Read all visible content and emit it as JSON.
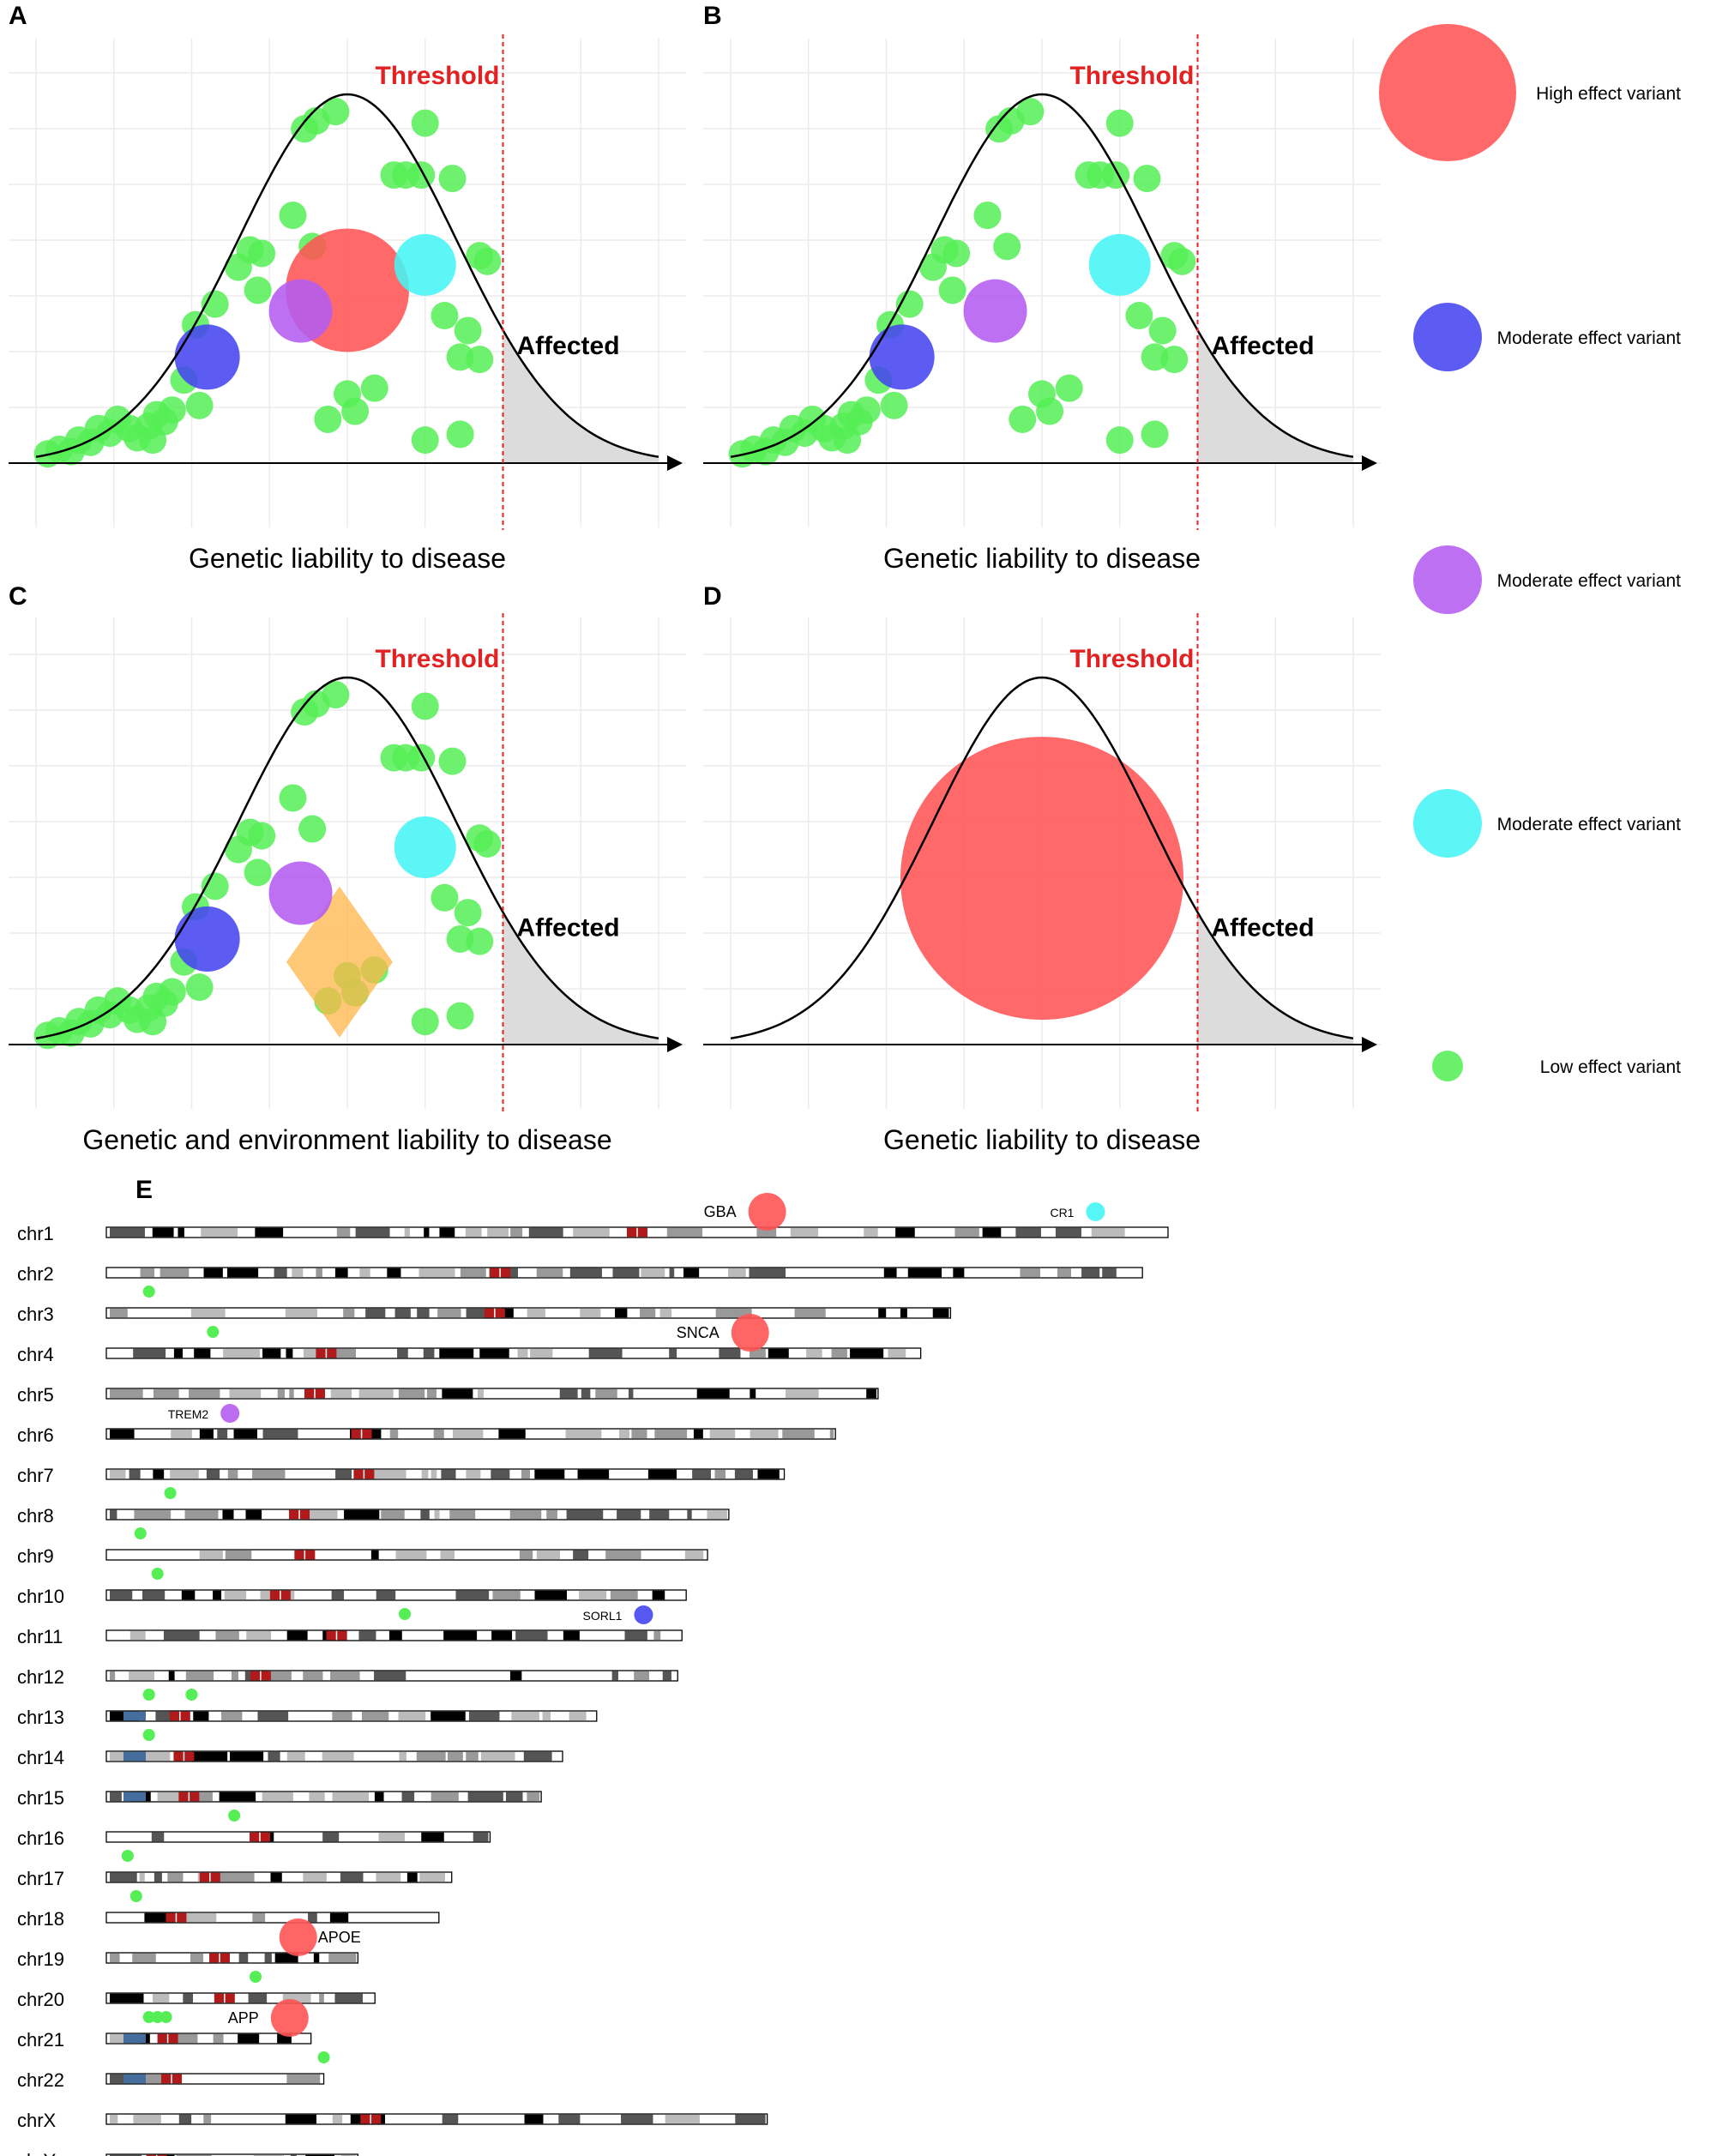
{
  "panels": [
    {
      "letter": "A",
      "threshold_label": "Threshold",
      "affected_label": "Affected",
      "xlabel": "Genetic liability to disease",
      "extra_variants": [
        {
          "type": "red",
          "x": 4.0,
          "y": 1.5
        },
        {
          "type": "cyan",
          "x": 5.0,
          "y": 1.72
        },
        {
          "type": "purple",
          "x": 3.4,
          "y": 1.32
        },
        {
          "type": "blue",
          "x": 2.2,
          "y": 0.92
        }
      ],
      "environment": null
    },
    {
      "letter": "B",
      "threshold_label": "Threshold",
      "affected_label": "Affected",
      "xlabel": "Genetic liability to disease",
      "extra_variants": [
        {
          "type": "cyan",
          "x": 5.0,
          "y": 1.72
        },
        {
          "type": "purple",
          "x": 3.4,
          "y": 1.32
        },
        {
          "type": "blue",
          "x": 2.2,
          "y": 0.92
        }
      ],
      "environment": null
    },
    {
      "letter": "C",
      "threshold_label": "Threshold",
      "affected_label": "Affected",
      "xlabel": "Genetic and environment liability to disease",
      "extra_variants": [
        {
          "type": "cyan",
          "x": 5.0,
          "y": 1.72
        },
        {
          "type": "purple",
          "x": 3.4,
          "y": 1.32
        },
        {
          "type": "blue",
          "x": 2.2,
          "y": 0.92
        }
      ],
      "environment": {
        "x": 3.9,
        "y": 0.72
      }
    },
    {
      "letter": "D",
      "threshold_label": "Threshold",
      "affected_label": "Affected",
      "xlabel": "Genetic liability to disease",
      "extra_variants": [
        {
          "type": "redbig",
          "x": 4.0,
          "y": 1.45
        }
      ],
      "environment": null,
      "hide_green": true
    }
  ],
  "curve": {
    "xmin": 0,
    "xmax": 8,
    "ymax": 3.2,
    "mean": 4.0,
    "sd": 1.4,
    "peak": 3.2,
    "threshold_x": 6.0
  },
  "green_points": [
    [
      0.15,
      0.08
    ],
    [
      0.3,
      0.12
    ],
    [
      0.45,
      0.1
    ],
    [
      0.55,
      0.2
    ],
    [
      0.7,
      0.18
    ],
    [
      0.8,
      0.3
    ],
    [
      0.95,
      0.26
    ],
    [
      1.05,
      0.38
    ],
    [
      1.2,
      0.3
    ],
    [
      1.3,
      0.22
    ],
    [
      1.45,
      0.32
    ],
    [
      1.55,
      0.42
    ],
    [
      1.65,
      0.36
    ],
    [
      1.75,
      0.46
    ],
    [
      1.5,
      0.2
    ],
    [
      1.9,
      0.72
    ],
    [
      2.1,
      0.5
    ],
    [
      2.05,
      1.2
    ],
    [
      2.3,
      1.38
    ],
    [
      2.6,
      1.7
    ],
    [
      2.85,
      1.5
    ],
    [
      2.75,
      1.85
    ],
    [
      2.9,
      1.82
    ],
    [
      3.3,
      2.15
    ],
    [
      3.45,
      2.9
    ],
    [
      3.6,
      2.97
    ],
    [
      3.85,
      3.05
    ],
    [
      3.75,
      0.38
    ],
    [
      4.0,
      0.6
    ],
    [
      4.1,
      0.45
    ],
    [
      4.35,
      0.65
    ],
    [
      4.6,
      2.5
    ],
    [
      4.75,
      2.5
    ],
    [
      4.95,
      2.5
    ],
    [
      5.0,
      2.95
    ],
    [
      5.35,
      2.47
    ],
    [
      5.25,
      1.28
    ],
    [
      5.45,
      0.92
    ],
    [
      5.7,
      0.9
    ],
    [
      5.55,
      1.15
    ],
    [
      5.7,
      1.8
    ],
    [
      5.8,
      1.75
    ],
    [
      5.0,
      0.2
    ],
    [
      5.45,
      0.25
    ],
    [
      3.55,
      1.88
    ]
  ],
  "legend": [
    {
      "type": "red",
      "label": "High effect variant"
    },
    {
      "type": "blue",
      "label": "Moderate effect variant"
    },
    {
      "type": "purple",
      "label": "Moderate effect variant"
    },
    {
      "type": "cyan",
      "label": "Moderate effect variant"
    },
    {
      "type": "green",
      "label": "Low effect variant"
    }
  ],
  "colors": {
    "red": "#ff5454",
    "blue": "#4545f0",
    "purple": "#b45cf0",
    "cyan": "#45f5f5",
    "green": "#55ee55",
    "orange": "#ffb54a",
    "threshold": "#e22222",
    "tail": "#dcdcdc",
    "grid": "#ececec"
  },
  "karyotype": {
    "letter": "E",
    "chromosomes": [
      {
        "name": "chr1",
        "length": 249,
        "centromere": 0.5
      },
      {
        "name": "chr2",
        "length": 243,
        "centromere": 0.38
      },
      {
        "name": "chr3",
        "length": 198,
        "centromere": 0.46
      },
      {
        "name": "chr4",
        "length": 191,
        "centromere": 0.27
      },
      {
        "name": "chr5",
        "length": 181,
        "centromere": 0.27
      },
      {
        "name": "chr6",
        "length": 171,
        "centromere": 0.35
      },
      {
        "name": "chr7",
        "length": 159,
        "centromere": 0.38
      },
      {
        "name": "chr8",
        "length": 146,
        "centromere": 0.31
      },
      {
        "name": "chr9",
        "length": 141,
        "centromere": 0.33
      },
      {
        "name": "chr10",
        "length": 136,
        "centromere": 0.3
      },
      {
        "name": "chr11",
        "length": 135,
        "centromere": 0.4
      },
      {
        "name": "chr12",
        "length": 134,
        "centromere": 0.27
      },
      {
        "name": "chr13",
        "length": 115,
        "centromere": 0.15
      },
      {
        "name": "chr14",
        "length": 107,
        "centromere": 0.17
      },
      {
        "name": "chr15",
        "length": 102,
        "centromere": 0.19
      },
      {
        "name": "chr16",
        "length": 90,
        "centromere": 0.4
      },
      {
        "name": "chr17",
        "length": 81,
        "centromere": 0.3
      },
      {
        "name": "chr18",
        "length": 78,
        "centromere": 0.21
      },
      {
        "name": "chr19",
        "length": 59,
        "centromere": 0.45
      },
      {
        "name": "chr20",
        "length": 63,
        "centromere": 0.44
      },
      {
        "name": "chr21",
        "length": 48,
        "centromere": 0.3
      },
      {
        "name": "chr22",
        "length": 51,
        "centromere": 0.3
      },
      {
        "name": "chrX",
        "length": 155,
        "centromere": 0.4
      },
      {
        "name": "chrY",
        "length": 59,
        "centromere": 0.2
      }
    ],
    "genes": [
      {
        "label": "GBA",
        "chr": "chr1",
        "pos": 155,
        "type": "red",
        "big": true,
        "label_side": "left"
      },
      {
        "label": "CR1",
        "chr": "chr1",
        "pos": 232,
        "type": "cyan",
        "big": false,
        "label_side": "left"
      },
      {
        "label": "SNCA",
        "chr": "chr4",
        "pos": 151,
        "type": "red",
        "big": true,
        "label_side": "left"
      },
      {
        "label": "TREM2",
        "chr": "chr6",
        "pos": 29,
        "type": "purple",
        "big": false,
        "label_side": "left"
      },
      {
        "label": "SORL1",
        "chr": "chr11",
        "pos": 126,
        "type": "blue",
        "big": false,
        "label_side": "left"
      },
      {
        "label": "APOE",
        "chr": "chr19",
        "pos": 45,
        "type": "red",
        "big": true,
        "label_side": "right"
      },
      {
        "label": "APP",
        "chr": "chr21",
        "pos": 43,
        "type": "red",
        "big": true,
        "label_side": "left"
      }
    ],
    "green_markers": [
      {
        "chr": "chr2",
        "pos": 10
      },
      {
        "chr": "chr3",
        "pos": 25
      },
      {
        "chr": "chr7",
        "pos": 15
      },
      {
        "chr": "chr8",
        "pos": 8
      },
      {
        "chr": "chr9",
        "pos": 12
      },
      {
        "chr": "chr10",
        "pos": 70
      },
      {
        "chr": "chr12",
        "pos": 10
      },
      {
        "chr": "chr12",
        "pos": 20
      },
      {
        "chr": "chr13",
        "pos": 10
      },
      {
        "chr": "chr15",
        "pos": 30
      },
      {
        "chr": "chr16",
        "pos": 5
      },
      {
        "chr": "chr17",
        "pos": 7
      },
      {
        "chr": "chr19",
        "pos": 35
      },
      {
        "chr": "chr20",
        "pos": 10
      },
      {
        "chr": "chr20",
        "pos": 12
      },
      {
        "chr": "chr20",
        "pos": 14
      },
      {
        "chr": "chr21",
        "pos": 51
      }
    ]
  }
}
